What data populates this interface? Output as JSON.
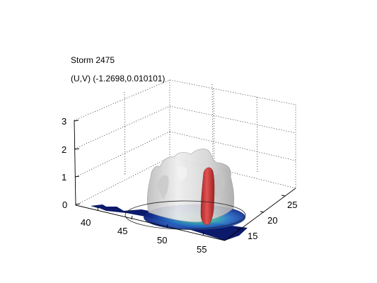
{
  "chart_data": {
    "type": "3d-isosurface",
    "title_lines": [
      "Storm 2475",
      "(U,V) (-1.2698,0.010101)"
    ],
    "x_ticks": [
      "40",
      "45",
      "50",
      "55"
    ],
    "y_ticks": [
      "15",
      "20",
      "25"
    ],
    "z_ticks": [
      "0",
      "1",
      "2",
      "3"
    ],
    "xlim": [
      38,
      56
    ],
    "ylim": [
      12,
      28
    ],
    "zlim": [
      0,
      3
    ],
    "grid": true,
    "colors": {
      "outer_surface": "#d9d9d9",
      "inner_core": "#d23c3c",
      "base_field_low": "#0b1a6b",
      "base_field_high": "#6fd07a"
    }
  }
}
